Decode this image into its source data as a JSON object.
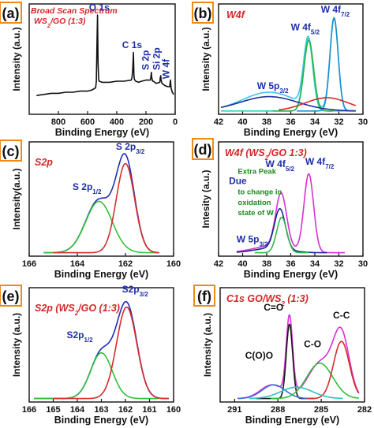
{
  "chart_data": [
    {
      "panel": "(a)",
      "type": "line",
      "title": [
        "Broad Scan Spectrum",
        "WS",
        "2",
        "/GO (1:3)"
      ],
      "xlabel": "Binding Energy (eV)",
      "ylabel": "Intensity (a.u.)",
      "xlim": [
        1000,
        0
      ],
      "xticks": [
        800,
        600,
        400,
        200,
        0
      ],
      "ylim": [
        0,
        1
      ],
      "series": [
        {
          "x": [
            950,
            900,
            850,
            800,
            750,
            700,
            650,
            600,
            570,
            545,
            540,
            536,
            532,
            528,
            524,
            520,
            500,
            450,
            400,
            350,
            300,
            295,
            290,
            286,
            284,
            282,
            280,
            276,
            270,
            250,
            230,
            200,
            170,
            166,
            163,
            160,
            158,
            155,
            150,
            130,
            105,
            102,
            99,
            96,
            90,
            70,
            50,
            38,
            35,
            32,
            28,
            20,
            10
          ],
          "y": [
            0.17,
            0.18,
            0.19,
            0.19,
            0.2,
            0.2,
            0.21,
            0.21,
            0.22,
            0.24,
            0.3,
            0.6,
            0.9,
            0.46,
            0.31,
            0.3,
            0.29,
            0.29,
            0.3,
            0.3,
            0.31,
            0.34,
            0.42,
            0.56,
            0.43,
            0.35,
            0.32,
            0.31,
            0.3,
            0.29,
            0.3,
            0.31,
            0.31,
            0.34,
            0.38,
            0.33,
            0.32,
            0.3,
            0.3,
            0.28,
            0.29,
            0.33,
            0.35,
            0.31,
            0.28,
            0.26,
            0.25,
            0.25,
            0.28,
            0.31,
            0.24,
            0.2,
            0.18
          ],
          "color": "#111111"
        }
      ],
      "annotations": [
        {
          "text": "O 1s",
          "x": 520,
          "y": 0.94
        },
        {
          "text": "C 1s",
          "x": 295,
          "y": 0.6
        },
        {
          "text": "S 2p",
          "x": 180,
          "y": 0.4
        },
        {
          "text": "Si 2p",
          "x": 105,
          "y": 0.4
        },
        {
          "text": "W 4f",
          "x": 40,
          "y": 0.32
        }
      ]
    },
    {
      "panel": "(b)",
      "type": "line",
      "title": [
        "W4f"
      ],
      "xlabel": "Binding Energy (eV)",
      "ylabel": "Intensity (a.u.)",
      "xlim": [
        42,
        30
      ],
      "xticks": [
        42,
        40,
        38,
        36,
        34,
        32,
        30
      ],
      "ylim": [
        0,
        1
      ],
      "series": [
        {
          "name": "W 5p3/2",
          "color": "#3ec5e8",
          "peaks": [
            [
              37.8,
              0.17,
              2.2
            ],
            [
              34.55,
              0.62,
              0.38
            ],
            [
              32.4,
              0.84,
              0.34
            ]
          ],
          "xrange": [
            41.8,
            30.6
          ]
        },
        {
          "name": "W 4f5/2",
          "color": "#36d0b4",
          "peaks": [
            [
              34.55,
              0.66,
              0.38
            ]
          ],
          "xrange": [
            41.8,
            30.6
          ]
        },
        {
          "name": "W 4f5/2 fit",
          "color": "#27b34a",
          "peaks": [
            [
              34.5,
              0.64,
              0.4
            ]
          ],
          "xrange": [
            37.5,
            32.5
          ]
        },
        {
          "name": "W 4f7/2",
          "color": "#1a8fd0",
          "peaks": [
            [
              32.4,
              0.84,
              0.34
            ]
          ],
          "xrange": [
            35.5,
            30.6
          ]
        },
        {
          "name": "background",
          "color": "#1f2f9c",
          "peaks": [
            [
              37.8,
              0.13,
              2.4
            ]
          ],
          "xrange": [
            41.8,
            30.6
          ]
        },
        {
          "name": "red fit",
          "color": "#d62a2a",
          "peaks": [
            [
              33.0,
              0.12,
              1.8
            ]
          ],
          "xrange": [
            37.0,
            30.6
          ]
        }
      ],
      "annotations": [
        {
          "text": "W 4f",
          "sub": "7/2",
          "x": 32.3,
          "y": 0.92
        },
        {
          "text": "W 4f",
          "sub": "5/2",
          "x": 34.8,
          "y": 0.76
        },
        {
          "text": "W 5p",
          "sub": "3/2",
          "x": 37.5,
          "y": 0.23
        }
      ]
    },
    {
      "panel": "(c)",
      "type": "line",
      "title": [
        "S2p"
      ],
      "xlabel": "Binding Energy (eV)",
      "ylabel": "Intensity(a.u.)",
      "xlim": [
        166,
        160
      ],
      "xticks": [
        166,
        164,
        162,
        160
      ],
      "ylim": [
        0,
        1
      ],
      "series": [
        {
          "name": "envelope",
          "color": "#2030b0",
          "peaks": [
            [
              163.1,
              0.46,
              0.55
            ],
            [
              162.0,
              0.8,
              0.38
            ]
          ],
          "xrange": [
            165.4,
            160.6
          ]
        },
        {
          "name": "S 2p1/2",
          "color": "#33c33a",
          "peaks": [
            [
              163.1,
              0.45,
              0.55
            ]
          ],
          "xrange": [
            165.4,
            160.6
          ]
        },
        {
          "name": "S 2p3/2",
          "color": "#d32f2f",
          "peaks": [
            [
              162.0,
              0.78,
              0.38
            ]
          ],
          "xrange": [
            165.0,
            160.6
          ]
        }
      ],
      "annotations": [
        {
          "text": "S 2p",
          "sub": "1/2",
          "x": 163.6,
          "y": 0.58
        },
        {
          "text": "S 2p",
          "sub": "3/2",
          "x": 161.8,
          "y": 0.93
        }
      ]
    },
    {
      "panel": "(d)",
      "type": "line",
      "title": [
        "W4f (WS",
        "2",
        "/GO 1:3)"
      ],
      "xlabel": "Binding Energy (eV)",
      "ylabel": "Intesity (a.u.)",
      "xlim": [
        42,
        30
      ],
      "xticks": [
        42,
        40,
        38,
        36,
        34,
        32,
        30
      ],
      "ylim": [
        0,
        1
      ],
      "series": [
        {
          "name": "envelope",
          "color": "#d631d6",
          "peaks": [
            [
              36.8,
              0.47,
              0.45
            ],
            [
              34.5,
              0.68,
              0.4
            ],
            [
              37.5,
              0.06,
              1.6
            ]
          ],
          "xrange": [
            40.5,
            31.5
          ]
        },
        {
          "name": "extra peak",
          "color": "#1b2a8e",
          "peaks": [
            [
              36.9,
              0.35,
              0.45
            ],
            [
              37.6,
              0.04,
              1.4
            ]
          ],
          "xrange": [
            40.5,
            33.0
          ]
        },
        {
          "name": "green fit",
          "color": "#32b94a",
          "peaks": [
            [
              36.75,
              0.31,
              0.42
            ]
          ],
          "xrange": [
            39.0,
            34.5
          ]
        }
      ],
      "annotations": [
        {
          "text": "W 4f",
          "sub": "5/2",
          "x": 36.9,
          "y": 0.78
        },
        {
          "text": "W 4f",
          "sub": "7/2",
          "x": 33.6,
          "y": 0.8
        },
        {
          "text": "W 5p",
          "sub": "3/2",
          "x": 39.2,
          "y": 0.12
        },
        {
          "text": "Extra Peak",
          "x": 40.4,
          "y": 0.72
        },
        {
          "text": "Due",
          "x": 40.4,
          "y": 0.63
        },
        {
          "text": "to change in",
          "x": 40.4,
          "y": 0.54
        },
        {
          "text": "oxidation",
          "x": 40.4,
          "y": 0.45
        },
        {
          "text": "state of W",
          "x": 40.4,
          "y": 0.36
        }
      ]
    },
    {
      "panel": "(e)",
      "type": "line",
      "title": [
        "S2p (WS",
        "2",
        "/GO (1:3)"
      ],
      "xlabel": "Binding Energy (eV)",
      "ylabel": "Intensity (a.u.)",
      "xlim": [
        166,
        160
      ],
      "xticks": [
        166,
        165,
        164,
        163,
        162,
        161,
        160
      ],
      "ylim": [
        0,
        1
      ],
      "series": [
        {
          "name": "envelope",
          "color": "#1f2fb5",
          "peaks": [
            [
              163.0,
              0.4,
              0.45
            ],
            [
              161.95,
              0.82,
              0.42
            ]
          ],
          "xrange": [
            165.8,
            160.2
          ]
        },
        {
          "name": "S 2p1/2",
          "color": "#2fbf3a",
          "peaks": [
            [
              163.0,
              0.4,
              0.45
            ]
          ],
          "xrange": [
            165.8,
            160.6
          ]
        },
        {
          "name": "S 2p3/2",
          "color": "#d62b2b",
          "peaks": [
            [
              161.95,
              0.8,
              0.42
            ]
          ],
          "xrange": [
            165.0,
            160.2
          ]
        }
      ],
      "annotations": [
        {
          "text": "S2p",
          "sub": "1/2",
          "x": 163.9,
          "y": 0.56
        },
        {
          "text": "S2p",
          "sub": "3/2",
          "x": 161.6,
          "y": 0.96
        }
      ]
    },
    {
      "panel": "(f)",
      "type": "line",
      "title": [
        "C1s GO/WS",
        "2",
        " (1:3)"
      ],
      "xlabel": "Binding Energy (eV)",
      "ylabel": "Intensity (a.u.)",
      "xlim": [
        292,
        282
      ],
      "xticks": [
        291,
        288,
        285,
        282
      ],
      "ylim": [
        0,
        1
      ],
      "series": [
        {
          "name": "envelope",
          "color": "#d82fd8",
          "peaks": [
            [
              287.2,
              0.68,
              0.22
            ],
            [
              285.0,
              0.32,
              0.9
            ],
            [
              283.6,
              0.52,
              0.55
            ],
            [
              288.4,
              0.12,
              0.8
            ]
          ],
          "xrange": [
            290.8,
            282.4
          ]
        },
        {
          "name": "C=O",
          "color": "#1a1a1a",
          "peaks": [
            [
              287.2,
              0.65,
              0.22
            ]
          ],
          "xrange": [
            289.5,
            285.5
          ]
        },
        {
          "name": "C(O)O",
          "color": "#3a6fd8",
          "peaks": [
            [
              288.3,
              0.12,
              0.8
            ]
          ],
          "xrange": [
            290.8,
            286.0
          ]
        },
        {
          "name": "C-O",
          "color": "#2fbf3a",
          "peaks": [
            [
              285.1,
              0.31,
              0.9
            ]
          ],
          "xrange": [
            288.5,
            282.4
          ]
        },
        {
          "name": "C-C",
          "color": "#d62b2b",
          "peaks": [
            [
              283.6,
              0.5,
              0.55
            ]
          ],
          "xrange": [
            286.0,
            282.4
          ]
        },
        {
          "name": "cyan fit",
          "color": "#27c4c4",
          "peaks": [
            [
              286.7,
              0.1,
              1.1
            ]
          ],
          "xrange": [
            290.0,
            283.5
          ]
        }
      ],
      "annotations": [
        {
          "text": "C=O",
          "x": 288.3,
          "y": 0.8
        },
        {
          "text": "C(O)O",
          "x": 289.3,
          "y": 0.38
        },
        {
          "text": "C-O",
          "x": 285.6,
          "y": 0.48
        },
        {
          "text": "C-C",
          "x": 283.6,
          "y": 0.73
        }
      ]
    }
  ]
}
